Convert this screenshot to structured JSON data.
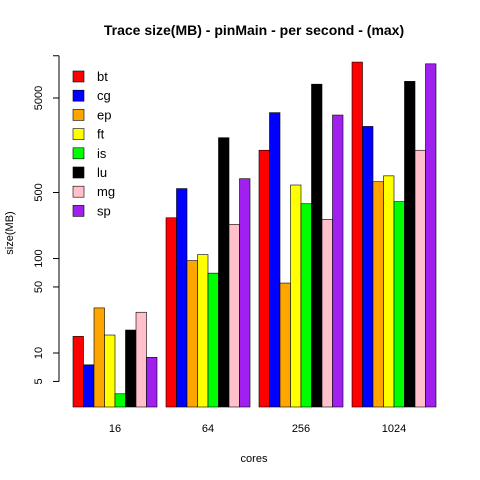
{
  "chart_data": {
    "type": "bar",
    "title": "Trace size(MB) - pinMain - per second - (max)",
    "xlabel": "cores",
    "ylabel": "size(MB)",
    "yscale": "log",
    "ylim": [
      3.3,
      14000
    ],
    "yticks": [
      5,
      10,
      50,
      100,
      500,
      5000
    ],
    "grid": false,
    "legend_position": "top-left",
    "categories": [
      "16",
      "64",
      "256",
      "1024"
    ],
    "series": [
      {
        "name": "bt",
        "color": "#ff0000",
        "values": [
          15,
          270,
          1400,
          12000
        ]
      },
      {
        "name": "cg",
        "color": "#0000ff",
        "values": [
          7.5,
          550,
          3500,
          2500
        ]
      },
      {
        "name": "ep",
        "color": "#ffa500",
        "values": [
          30,
          95,
          55,
          650
        ]
      },
      {
        "name": "ft",
        "color": "#ffff00",
        "values": [
          15.5,
          110,
          600,
          750
        ]
      },
      {
        "name": "is",
        "color": "#00ff00",
        "values": [
          3.7,
          70,
          380,
          400
        ]
      },
      {
        "name": "lu",
        "color": "#000000",
        "values": [
          17.5,
          1900,
          7000,
          7500
        ]
      },
      {
        "name": "mg",
        "color": "#ffc0cb",
        "values": [
          27,
          230,
          260,
          1400
        ]
      },
      {
        "name": "sp",
        "color": "#a020f0",
        "values": [
          9,
          700,
          3300,
          11500
        ]
      }
    ]
  }
}
